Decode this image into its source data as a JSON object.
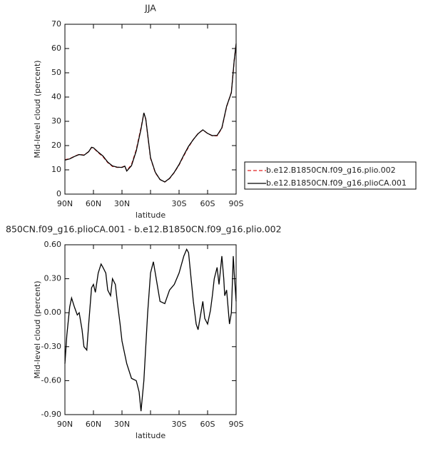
{
  "chart_data": [
    {
      "type": "line",
      "title": "JJA",
      "xlabel": "latitude",
      "ylabel": "Mid-level cloud (percent)",
      "x": [
        90,
        85,
        80,
        75,
        70,
        65,
        62,
        60,
        55,
        50,
        45,
        40,
        35,
        30,
        27,
        25,
        20,
        15,
        10,
        7,
        5,
        0,
        -5,
        -10,
        -15,
        -20,
        -25,
        -30,
        -35,
        -40,
        -45,
        -50,
        -55,
        -60,
        -65,
        -70,
        -75,
        -80,
        -85,
        -88,
        -90
      ],
      "series": [
        {
          "name": "b.e12.B1850CN.f09_g16.plio.002",
          "color": "#e02020",
          "dash": true,
          "values": [
            14.2,
            14.6,
            15.6,
            16.4,
            16.1,
            17.5,
            19.2,
            19.0,
            17.1,
            15.4,
            13.0,
            11.4,
            11.0,
            11.1,
            11.6,
            9.6,
            12.2,
            18.3,
            27.4,
            33.3,
            30.8,
            14.8,
            8.8,
            6.0,
            5.0,
            6.4,
            8.9,
            12.0,
            15.8,
            19.4,
            22.5,
            25.0,
            26.4,
            25.0,
            24.0,
            24.0,
            27.1,
            36.0,
            42.0,
            55.0,
            61.8
          ]
        },
        {
          "name": "b.e12.B1850CN.f09_g16.plioCA.001",
          "color": "#000000",
          "dash": false,
          "values": [
            14.0,
            14.5,
            15.5,
            16.3,
            16.0,
            17.5,
            19.3,
            19.1,
            17.3,
            15.7,
            13.2,
            11.6,
            11.1,
            11.0,
            11.5,
            9.5,
            11.7,
            17.8,
            26.8,
            33.5,
            31.0,
            15.0,
            9.0,
            6.0,
            5.0,
            6.5,
            9.0,
            12.2,
            16.1,
            19.7,
            22.5,
            24.9,
            26.5,
            25.0,
            24.1,
            24.2,
            27.3,
            36.2,
            41.8,
            55.2,
            62.0
          ]
        }
      ],
      "xlim": [
        90,
        -90
      ],
      "xticks": [
        {
          "value": 90,
          "label": "90N"
        },
        {
          "value": 60,
          "label": "60N"
        },
        {
          "value": 30,
          "label": "30N"
        },
        {
          "value": 0,
          "label": null
        },
        {
          "value": -30,
          "label": "30S"
        },
        {
          "value": -60,
          "label": "60S"
        },
        {
          "value": -90,
          "label": "90S"
        }
      ],
      "ylim": [
        0,
        70
      ],
      "yticks": [
        0,
        10,
        20,
        30,
        40,
        50,
        60,
        70
      ]
    },
    {
      "type": "line",
      "title": "850CN.f09_g16.plioCA.001 - b.e12.B1850CN.f09_g16.plio.002",
      "xlabel": "latitude",
      "ylabel": "Mid-level cloud (percent)",
      "x": [
        90,
        88,
        85,
        83,
        80,
        77,
        75,
        72,
        70,
        67,
        65,
        62,
        60,
        58,
        55,
        52,
        50,
        47,
        45,
        42,
        40,
        37,
        35,
        32,
        30,
        25,
        20,
        15,
        12,
        10,
        7,
        5,
        3,
        0,
        -3,
        -5,
        -8,
        -10,
        -15,
        -20,
        -25,
        -30,
        -35,
        -38,
        -40,
        -45,
        -48,
        -50,
        -52,
        -55,
        -57,
        -60,
        -63,
        -65,
        -67,
        -70,
        -72,
        -75,
        -77,
        -78,
        -80,
        -83,
        -85,
        -87,
        -88,
        -90
      ],
      "series": [
        {
          "color": "#000000",
          "dash": false,
          "values": [
            -0.45,
            -0.2,
            0.05,
            0.13,
            0.05,
            -0.02,
            0.0,
            -0.15,
            -0.3,
            -0.33,
            -0.1,
            0.22,
            0.25,
            0.18,
            0.35,
            0.43,
            0.4,
            0.35,
            0.2,
            0.15,
            0.3,
            0.25,
            0.1,
            -0.1,
            -0.25,
            -0.45,
            -0.58,
            -0.6,
            -0.7,
            -0.87,
            -0.6,
            -0.3,
            0.0,
            0.35,
            0.45,
            0.35,
            0.2,
            0.1,
            0.08,
            0.2,
            0.25,
            0.35,
            0.5,
            0.56,
            0.53,
            0.1,
            -0.1,
            -0.15,
            -0.05,
            0.1,
            -0.05,
            -0.1,
            0.02,
            0.15,
            0.3,
            0.4,
            0.25,
            0.5,
            0.3,
            0.15,
            0.2,
            -0.1,
            0.0,
            0.5,
            0.35,
            0.1
          ]
        }
      ],
      "xlim": [
        90,
        -90
      ],
      "xticks": [
        {
          "value": 90,
          "label": "90N"
        },
        {
          "value": 60,
          "label": "60N"
        },
        {
          "value": 30,
          "label": "30N"
        },
        {
          "value": 0,
          "label": null
        },
        {
          "value": -30,
          "label": "30S"
        },
        {
          "value": -60,
          "label": "60S"
        },
        {
          "value": -90,
          "label": "90S"
        }
      ],
      "ylim": [
        -0.9,
        0.6
      ],
      "yticks": [
        {
          "value": -0.9,
          "label": "-0.90"
        },
        {
          "value": -0.6,
          "label": "-0.60"
        },
        {
          "value": -0.3,
          "label": "-0.30"
        },
        {
          "value": 0,
          "label": "0.00"
        },
        {
          "value": 0.3,
          "label": "0.30"
        },
        {
          "value": 0.6,
          "label": "0.60"
        }
      ]
    }
  ]
}
